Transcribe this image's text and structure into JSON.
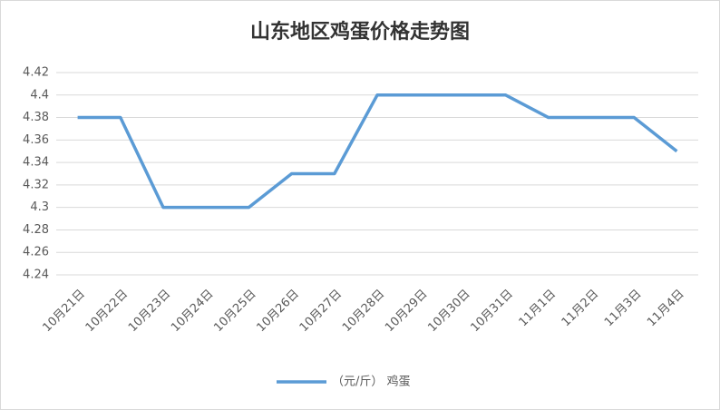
{
  "chart_data": {
    "type": "line",
    "title": "山东地区鸡蛋价格走势图",
    "categories": [
      "10月21日",
      "10月22日",
      "10月23日",
      "10月24日",
      "10月25日",
      "10月26日",
      "10月27日",
      "10月28日",
      "10月29日",
      "10月30日",
      "10月31日",
      "11月1日",
      "11月2日",
      "11月3日",
      "11月4日"
    ],
    "series": [
      {
        "name": "（元/斤） 鸡蛋",
        "color": "#5b9bd5",
        "values": [
          4.38,
          4.38,
          4.3,
          4.3,
          4.3,
          4.33,
          4.33,
          4.4,
          4.4,
          4.4,
          4.4,
          4.38,
          4.38,
          4.38,
          4.35
        ]
      }
    ],
    "ylim": [
      4.24,
      4.42
    ],
    "yticks": [
      4.24,
      4.26,
      4.28,
      4.3,
      4.32,
      4.34,
      4.36,
      4.38,
      4.4,
      4.42
    ],
    "grid": true,
    "legend": "bottom"
  }
}
